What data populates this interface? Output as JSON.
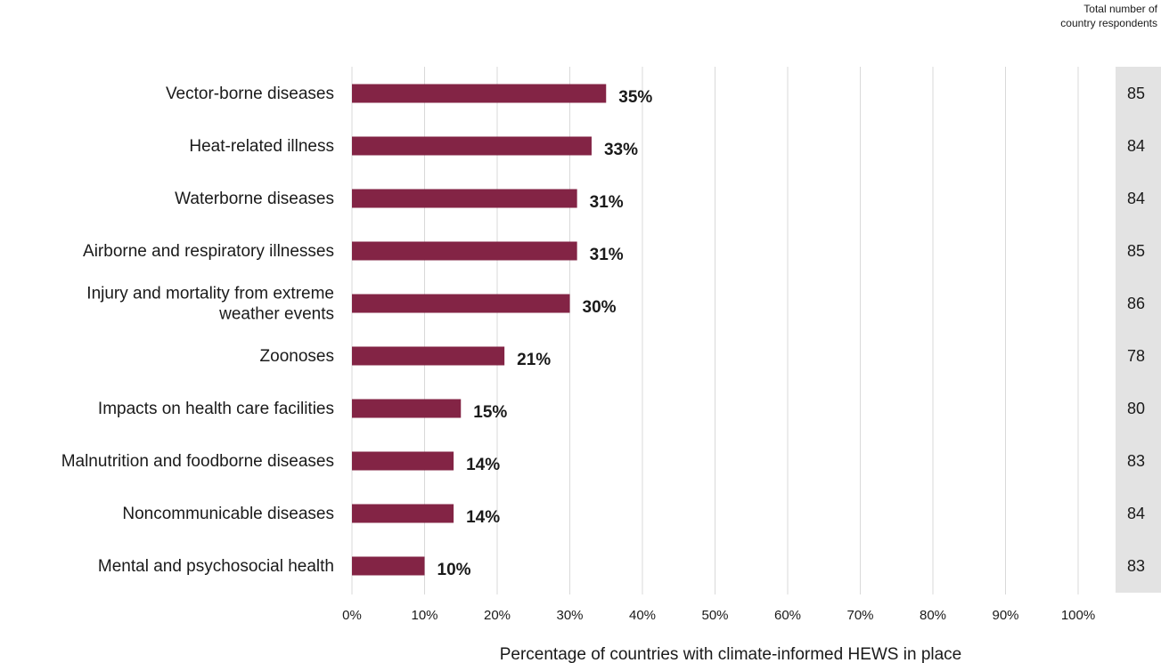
{
  "chart_data": {
    "type": "bar",
    "orientation": "horizontal",
    "categories": [
      [
        "Vector-borne diseases"
      ],
      [
        "Heat-related illness"
      ],
      [
        "Waterborne diseases"
      ],
      [
        "Airborne and respiratory illnesses"
      ],
      [
        "Injury and mortality from extreme",
        "weather events"
      ],
      [
        "Zoonoses"
      ],
      [
        "Impacts on health care facilities"
      ],
      [
        "Malnutrition and foodborne diseases"
      ],
      [
        "Noncommunicable diseases"
      ],
      [
        "Mental and psychosocial health"
      ]
    ],
    "values": [
      35,
      33,
      31,
      31,
      30,
      21,
      15,
      14,
      14,
      10
    ],
    "value_labels": [
      "35%",
      "33%",
      "31%",
      "31%",
      "30%",
      "21%",
      "15%",
      "14%",
      "14%",
      "10%"
    ],
    "respondents": [
      85,
      84,
      84,
      85,
      86,
      78,
      80,
      83,
      84,
      83
    ],
    "respondents_header": "Total number of country respondents",
    "xlabel": "Percentage of countries with climate-informed HEWS in place",
    "xlim": [
      0,
      100
    ],
    "xticks": [
      "0%",
      "10%",
      "20%",
      "30%",
      "40%",
      "50%",
      "60%",
      "70%",
      "80%",
      "90%",
      "100%"
    ],
    "grid": true,
    "bar_color": "#832445",
    "respondents_bg": "#e3e3e3"
  }
}
